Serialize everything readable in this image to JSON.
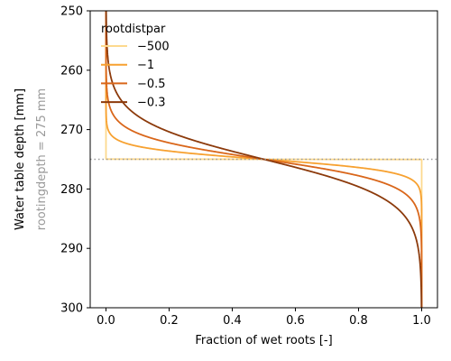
{
  "chart_data": {
    "type": "line",
    "xlabel": "Fraction of wet roots [-]",
    "ylabel": "Water table depth [mm]",
    "ylabel_secondary": "rootingdepth = 275 mm",
    "xlim": [
      -0.05,
      1.05
    ],
    "ylim": [
      300,
      250
    ],
    "y_inverted": true,
    "x_ticks": [
      0.0,
      0.2,
      0.4,
      0.6,
      0.8,
      1.0
    ],
    "x_tick_labels": [
      "0.0",
      "0.2",
      "0.4",
      "0.6",
      "0.8",
      "1.0"
    ],
    "y_ticks": [
      250,
      260,
      270,
      280,
      290,
      300
    ],
    "y_tick_labels": [
      "250",
      "260",
      "270",
      "280",
      "290",
      "300"
    ],
    "grid": false,
    "legend": {
      "title": "rootdistpar",
      "placement": "top-left"
    },
    "reference_line": {
      "orientation": "horizontal",
      "y": 275,
      "style": "dotted",
      "color": "#9a9a9a"
    },
    "rooting_depth_mm": 275,
    "curve_model": "fraction = 1 / (1 + exp(-rootdistpar * (rootingdepth - depth)))",
    "series": [
      {
        "name": "−500",
        "rootdistpar": -500,
        "color": "#fdd98e"
      },
      {
        "name": "−1",
        "rootdistpar": -1,
        "color": "#f7a130"
      },
      {
        "name": "−0.5",
        "rootdistpar": -0.5,
        "color": "#d9661a"
      },
      {
        "name": "−0.3",
        "rootdistpar": -0.3,
        "color": "#8c3a0b"
      }
    ]
  }
}
